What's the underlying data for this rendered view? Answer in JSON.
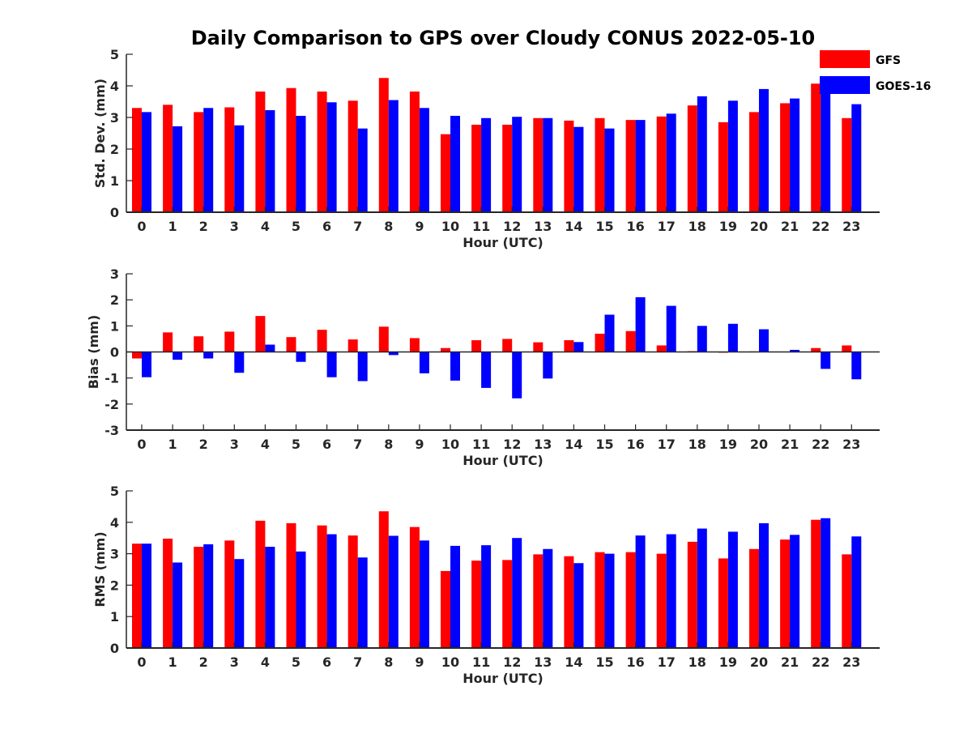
{
  "title": "Daily Comparison to GPS over Cloudy CONUS 2022-05-10",
  "legend": [
    {
      "label": "GFS",
      "color": "#ff0000"
    },
    {
      "label": "GOES-16",
      "color": "#0000ff"
    }
  ],
  "chart_data": [
    {
      "type": "bar",
      "ylabel": "Std. Dev. (mm)",
      "xlabel": "Hour (UTC)",
      "ylim": [
        0,
        5
      ],
      "yticks": [
        0,
        1,
        2,
        3,
        4,
        5
      ],
      "categories": [
        "0",
        "1",
        "2",
        "3",
        "4",
        "5",
        "6",
        "7",
        "8",
        "9",
        "10",
        "11",
        "12",
        "13",
        "14",
        "15",
        "16",
        "17",
        "18",
        "19",
        "20",
        "21",
        "22",
        "23"
      ],
      "series": [
        {
          "name": "GFS",
          "color": "#ff0000",
          "values": [
            3.3,
            3.4,
            3.17,
            3.32,
            3.82,
            3.93,
            3.82,
            3.53,
            4.25,
            3.82,
            2.47,
            2.77,
            2.77,
            2.98,
            2.9,
            2.98,
            2.92,
            3.03,
            3.38,
            2.85,
            3.17,
            3.45,
            4.07,
            2.98
          ]
        },
        {
          "name": "GOES-16",
          "color": "#0000ff",
          "values": [
            3.17,
            2.72,
            3.3,
            2.75,
            3.23,
            3.05,
            3.48,
            2.65,
            3.55,
            3.3,
            3.05,
            2.98,
            3.02,
            2.98,
            2.7,
            2.65,
            2.92,
            3.12,
            3.67,
            3.53,
            3.9,
            3.6,
            4.07,
            3.42
          ]
        }
      ]
    },
    {
      "type": "bar",
      "ylabel": "Bias (mm)",
      "xlabel": "Hour (UTC)",
      "ylim": [
        -3,
        3
      ],
      "yticks": [
        -3,
        -2,
        -1,
        0,
        1,
        2,
        3
      ],
      "categories": [
        "0",
        "1",
        "2",
        "3",
        "4",
        "5",
        "6",
        "7",
        "8",
        "9",
        "10",
        "11",
        "12",
        "13",
        "14",
        "15",
        "16",
        "17",
        "18",
        "19",
        "20",
        "21",
        "22",
        "23"
      ],
      "series": [
        {
          "name": "GFS",
          "color": "#ff0000",
          "values": [
            -0.25,
            0.75,
            0.6,
            0.78,
            1.38,
            0.57,
            0.85,
            0.48,
            0.97,
            0.53,
            0.15,
            0.45,
            0.5,
            0.37,
            0.45,
            0.7,
            0.8,
            0.25,
            0.03,
            -0.03,
            0.02,
            0.0,
            0.15,
            0.25
          ]
        },
        {
          "name": "GOES-16",
          "color": "#0000ff",
          "values": [
            -0.97,
            -0.3,
            -0.25,
            -0.8,
            0.28,
            -0.38,
            -0.97,
            -1.12,
            -0.12,
            -0.82,
            -1.1,
            -1.38,
            -1.78,
            -1.02,
            0.38,
            1.43,
            2.1,
            1.77,
            1.0,
            1.08,
            0.87,
            0.08,
            -0.65,
            -1.05
          ]
        }
      ]
    },
    {
      "type": "bar",
      "ylabel": "RMS (mm)",
      "xlabel": "Hour (UTC)",
      "ylim": [
        0,
        5
      ],
      "yticks": [
        0,
        1,
        2,
        3,
        4,
        5
      ],
      "categories": [
        "0",
        "1",
        "2",
        "3",
        "4",
        "5",
        "6",
        "7",
        "8",
        "9",
        "10",
        "11",
        "12",
        "13",
        "14",
        "15",
        "16",
        "17",
        "18",
        "19",
        "20",
        "21",
        "22",
        "23"
      ],
      "series": [
        {
          "name": "GFS",
          "color": "#ff0000",
          "values": [
            3.32,
            3.48,
            3.22,
            3.42,
            4.05,
            3.97,
            3.9,
            3.58,
            4.35,
            3.85,
            2.45,
            2.78,
            2.8,
            2.98,
            2.92,
            3.05,
            3.05,
            3.0,
            3.38,
            2.85,
            3.15,
            3.45,
            4.08,
            2.98
          ]
        },
        {
          "name": "GOES-16",
          "color": "#0000ff",
          "values": [
            3.32,
            2.72,
            3.3,
            2.83,
            3.22,
            3.07,
            3.62,
            2.88,
            3.57,
            3.42,
            3.25,
            3.27,
            3.5,
            3.15,
            2.7,
            3.0,
            3.58,
            3.62,
            3.8,
            3.7,
            3.97,
            3.6,
            4.13,
            3.55
          ]
        }
      ]
    }
  ]
}
